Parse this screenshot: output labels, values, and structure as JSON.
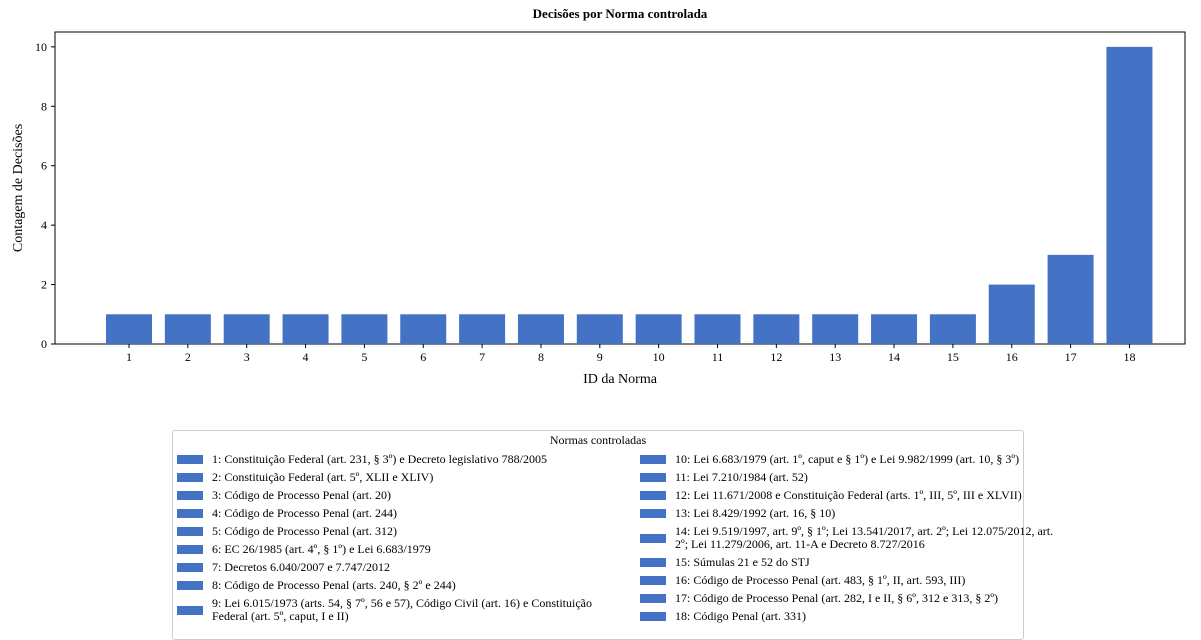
{
  "chart_data": {
    "type": "bar",
    "title": "Decisões por Norma controlada",
    "x_label": "ID da Norma",
    "y_label": "Contagem de Decisões",
    "categories": [
      "1",
      "2",
      "3",
      "4",
      "5",
      "6",
      "7",
      "8",
      "9",
      "10",
      "11",
      "12",
      "13",
      "14",
      "15",
      "16",
      "17",
      "18"
    ],
    "values": [
      1,
      1,
      1,
      1,
      1,
      1,
      1,
      1,
      1,
      1,
      1,
      1,
      1,
      1,
      1,
      2,
      3,
      10
    ],
    "color": "#4472c4",
    "ylim": [
      0,
      10.5
    ],
    "yticks": [
      0,
      2,
      4,
      6,
      8,
      10
    ],
    "grid": false,
    "legend": {
      "title": "Normas controladas",
      "entries": [
        "1: Constituição Federal (art. 231, § 3º) e Decreto legislativo 788/2005",
        "2: Constituição Federal (art. 5º, XLII e XLIV)",
        "3: Código de Processo Penal (art. 20)",
        "4: Código de Processo Penal (art. 244)",
        "5: Código de Processo Penal (art. 312)",
        "6: EC 26/1985 (art. 4º, § 1º) e Lei 6.683/1979",
        "7: Decretos 6.040/2007 e 7.747/2012",
        "8: Código de Processo Penal (arts. 240, § 2º e 244)",
        "9: Lei 6.015/1973 (arts. 54, § 7º, 56 e 57), Código Civil (art. 16) e Constituição Federal (art. 5º, caput, I e II)",
        "10: Lei 6.683/1979 (art. 1º, caput e § 1º) e Lei 9.982/1999 (art. 10, § 3º)",
        "11: Lei 7.210/1984 (art. 52)",
        "12: Lei 11.671/2008 e Constituição Federal (arts. 1º, III, 5º, III e XLVII)",
        "13: Lei 8.429/1992 (art. 16, § 10)",
        "14: Lei 9.519/1997, art. 9º, § 1º; Lei 13.541/2017, art. 2º; Lei 12.075/2012, art. 2º; Lei 11.279/2006, art. 11-A e Decreto 8.727/2016",
        "15: Súmulas 21 e 52 do STJ",
        "16: Código de Processo Penal (art. 483, § 1º, II, art. 593, III)",
        "17: Código de Processo Penal (art. 282, I e II, § 6º, 312 e 313, § 2º)",
        "18: Código Penal (art. 331)"
      ]
    }
  }
}
